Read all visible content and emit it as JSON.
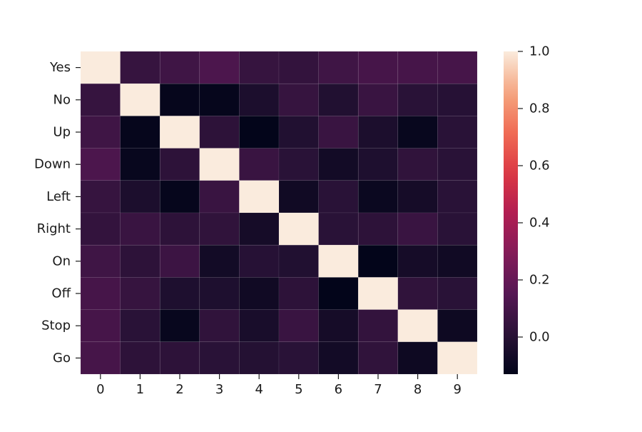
{
  "chart_data": {
    "type": "heatmap",
    "title": "",
    "xlabel": "",
    "ylabel": "",
    "x_labels": [
      "0",
      "1",
      "2",
      "3",
      "4",
      "5",
      "6",
      "7",
      "8",
      "9"
    ],
    "y_labels": [
      "Yes",
      "No",
      "Up",
      "Down",
      "Left",
      "Right",
      "On",
      "Off",
      "Stop",
      "Go"
    ],
    "values": [
      [
        1.0,
        0.05,
        0.08,
        0.12,
        0.05,
        0.04,
        0.08,
        0.1,
        0.1,
        0.1
      ],
      [
        0.05,
        1.0,
        -0.12,
        -0.12,
        -0.04,
        0.05,
        -0.02,
        0.06,
        0.01,
        0.0
      ],
      [
        0.08,
        -0.12,
        1.0,
        0.02,
        -0.13,
        -0.02,
        0.06,
        -0.04,
        -0.11,
        0.01
      ],
      [
        0.12,
        -0.11,
        0.02,
        1.0,
        0.06,
        0.01,
        -0.07,
        -0.03,
        0.03,
        0.01
      ],
      [
        0.05,
        -0.04,
        -0.12,
        0.06,
        1.0,
        -0.08,
        0.01,
        -0.1,
        -0.06,
        0.01
      ],
      [
        0.04,
        0.06,
        0.02,
        0.03,
        -0.06,
        1.0,
        0.01,
        0.02,
        0.06,
        0.01
      ],
      [
        0.08,
        0.02,
        0.07,
        -0.07,
        0.0,
        -0.02,
        1.0,
        -0.14,
        -0.06,
        -0.08
      ],
      [
        0.1,
        0.05,
        -0.03,
        -0.03,
        -0.08,
        0.02,
        -0.15,
        1.0,
        0.03,
        0.01
      ],
      [
        0.1,
        0.01,
        -0.11,
        0.03,
        -0.05,
        0.06,
        -0.06,
        0.04,
        1.0,
        -0.09
      ],
      [
        0.1,
        0.02,
        0.02,
        0.01,
        -0.01,
        0.01,
        -0.07,
        0.03,
        -0.09,
        1.0
      ]
    ],
    "colorbar": {
      "min": -0.13,
      "max": 1.0,
      "ticks": [
        0.0,
        0.2,
        0.4,
        0.6,
        0.8,
        1.0
      ],
      "tick_labels": [
        "0.0",
        "0.2",
        "0.4",
        "0.6",
        "0.8",
        "1.0"
      ],
      "colormap": "rocket"
    },
    "grid": false
  }
}
